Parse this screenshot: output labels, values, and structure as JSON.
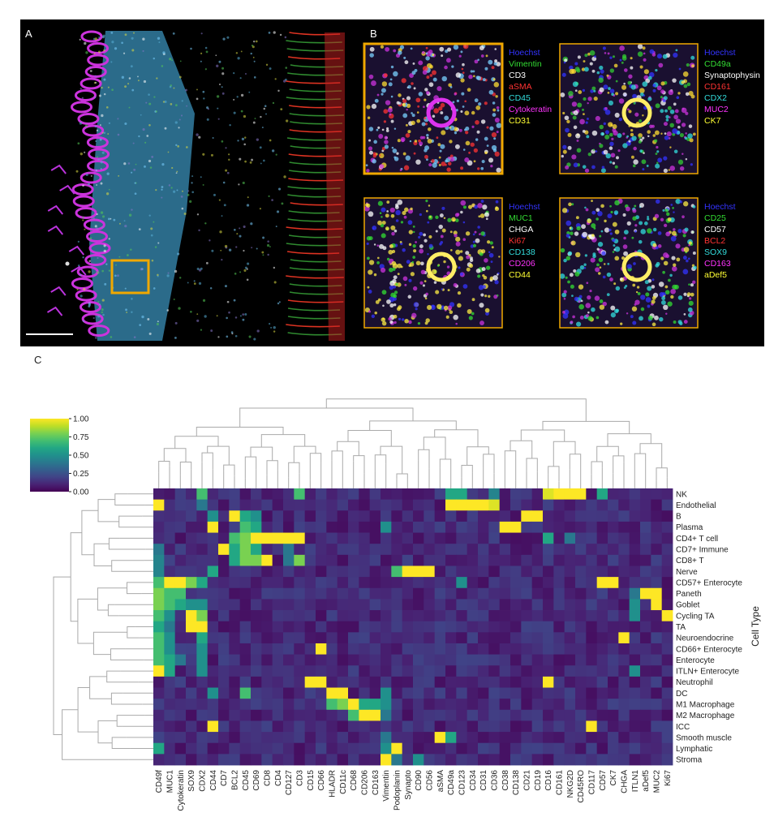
{
  "labels": {
    "a": "A",
    "b": "B",
    "c": "C"
  },
  "insets": [
    {
      "markers": [
        "Hoechst",
        "Vimentin",
        "CD3",
        "aSMA",
        "CD45",
        "Cytokeratin",
        "CD31"
      ],
      "colors": [
        "#3333ff",
        "#33dd33",
        "#ffffff",
        "#ff3333",
        "#33dddd",
        "#ff33ff",
        "#ffff33"
      ]
    },
    {
      "markers": [
        "Hoechst",
        "CD49a",
        "Synaptophysin",
        "CD161",
        "CDX2",
        "MUC2",
        "CK7"
      ],
      "colors": [
        "#3333ff",
        "#33dd33",
        "#ffffff",
        "#ff3333",
        "#33dddd",
        "#ff33ff",
        "#ffff33"
      ]
    },
    {
      "markers": [
        "Hoechst",
        "MUC1",
        "CHGA",
        "Ki67",
        "CD138",
        "CD206",
        "CD44"
      ],
      "colors": [
        "#3333ff",
        "#33dd33",
        "#ffffff",
        "#ff3333",
        "#33dddd",
        "#ff33ff",
        "#ffff33"
      ]
    },
    {
      "markers": [
        "Hoechst",
        "CD25",
        "CD57",
        "BCL2",
        "SOX9",
        "CD163",
        "aDef5"
      ],
      "colors": [
        "#3333ff",
        "#33dd33",
        "#ffffff",
        "#ff3333",
        "#33dddd",
        "#ff33ff",
        "#ffff33"
      ]
    }
  ],
  "chart_data": {
    "type": "heatmap",
    "ylabel": "Cell Type",
    "colorbar": {
      "ticks": [
        "1.00",
        "0.75",
        "0.50",
        "0.25",
        "0.00"
      ],
      "range": [
        0,
        1
      ]
    },
    "columns": [
      "CD49f",
      "MUC1",
      "Cytokeratin",
      "SOX9",
      "CDX2",
      "CD44",
      "CD7",
      "BCL2",
      "CD45",
      "CD69",
      "CD8",
      "CD4",
      "CD127",
      "CD3",
      "CD15",
      "CD66",
      "HLADR",
      "CD11c",
      "CD68",
      "CD206",
      "CD163",
      "Vimentin",
      "Podoplanin",
      "Synapto",
      "CD90",
      "CD56",
      "aSMA",
      "CD49a",
      "CD123",
      "CD34",
      "CD31",
      "CD36",
      "CD38",
      "CD138",
      "CD21",
      "CD19",
      "CD16",
      "CD161",
      "NKG2D",
      "CD45RO",
      "CD117",
      "CD57",
      "CK7",
      "CHGA",
      "ITLN1",
      "aDef5",
      "MUC2",
      "Ki67"
    ],
    "rows": [
      "NK",
      "Endothelial",
      "B",
      "Plasma",
      "CD4+ T cell",
      "CD7+ Immune",
      "CD8+ T",
      "Nerve",
      "CD57+ Enterocyte",
      "Paneth",
      "Goblet",
      "Cycling TA",
      "TA",
      "Neuroendocrine",
      "CD66+ Enterocyte",
      "Enterocyte",
      "ITLN+ Enterocyte",
      "Neutrophil",
      "DC",
      "M1 Macrophage",
      "M2 Macrophage",
      "ICC",
      "Smooth muscle",
      "Lymphatic",
      "Stroma"
    ],
    "high": [
      {
        "row": "NK",
        "cols": {
          "CD161": 1,
          "NKG2D": 1,
          "CD45RO": 1,
          "CD16": 0.95,
          "CD49a": 0.6,
          "CD123": 0.6,
          "CD3": 0.7,
          "CDX2": 0.7,
          "CD57": 0.6,
          "CD36": 0.45
        }
      },
      {
        "row": "Endothelial",
        "cols": {
          "CD49f": 1,
          "CD123": 1,
          "CD34": 1,
          "CD31": 1,
          "CD36": 0.95,
          "CD49a": 1,
          "CDX2": 0.4
        }
      },
      {
        "row": "B",
        "cols": {
          "BCL2": 1,
          "CD21": 1,
          "CD19": 1,
          "CD45": 0.6,
          "CD69": 0.5,
          "CD44": 0.5
        }
      },
      {
        "row": "Plasma",
        "cols": {
          "CD38": 1,
          "CD138": 1,
          "CD44": 1,
          "CD45": 0.7,
          "CD69": 0.6,
          "Vimentin": 0.5
        }
      },
      {
        "row": "CD4+ T cell",
        "cols": {
          "CD69": 1,
          "CD8": 1,
          "CD127": 1,
          "CD4": 1,
          "CD3": 1,
          "CD45": 0.8,
          "BCL2": 0.7,
          "CD16": 0.6,
          "NKG2D": 0.4
        }
      },
      {
        "row": "CD7+ Immune",
        "cols": {
          "CD7": 1,
          "CD45": 0.8,
          "BCL2": 0.6,
          "CD69": 0.6,
          "CD49f": 0.4,
          "CD127": 0.4
        }
      },
      {
        "row": "CD8+ T",
        "cols": {
          "CD8": 1,
          "CD69": 0.8,
          "CD45": 0.8,
          "CD3": 0.8,
          "BCL2": 0.6,
          "CD49f": 0.45,
          "CD127": 0.4
        }
      },
      {
        "row": "Nerve",
        "cols": {
          "Synapto": 1,
          "CD90": 1,
          "CD56": 1,
          "Podoplanin": 0.7,
          "CD44": 0.6,
          "CD49f": 0.45
        }
      },
      {
        "row": "CD57+ Enterocyte",
        "cols": {
          "MUC1": 1,
          "Cytokeratin": 1,
          "SOX9": 0.8,
          "CD57": 1,
          "CK7": 1,
          "CD49f": 0.7,
          "CDX2": 0.6,
          "CD123": 0.5
        }
      },
      {
        "row": "Paneth",
        "cols": {
          "CD49f": 0.8,
          "MUC1": 0.7,
          "Cytokeratin": 0.7,
          "aDef5": 1,
          "MUC2": 1,
          "ITLN1": 0.4
        }
      },
      {
        "row": "Goblet",
        "cols": {
          "CD49f": 0.8,
          "MUC1": 0.7,
          "Cytokeratin": 0.6,
          "SOX9": 0.5,
          "CDX2": 0.5,
          "MUC2": 1,
          "ITLN1": 0.5
        }
      },
      {
        "row": "Cycling TA",
        "cols": {
          "SOX9": 1,
          "CDX2": 0.8,
          "MUC1": 0.5,
          "CD49f": 0.7,
          "Ki67": 1,
          "ITLN1": 0.5
        }
      },
      {
        "row": "TA",
        "cols": {
          "SOX9": 1,
          "CDX2": 1,
          "CD49f": 0.6,
          "MUC1": 0.4
        }
      },
      {
        "row": "Neuroendocrine",
        "cols": {
          "CHGA": 1,
          "CD49f": 0.7,
          "MUC1": 0.5,
          "CDX2": 0.6
        }
      },
      {
        "row": "CD66+ Enterocyte",
        "cols": {
          "CD66": 1,
          "CD49f": 0.7,
          "MUC1": 0.5,
          "CDX2": 0.5
        }
      },
      {
        "row": "Enterocyte",
        "cols": {
          "CD49f": 0.7,
          "MUC1": 0.6,
          "CDX2": 0.5,
          "Cytokeratin": 0.4
        }
      },
      {
        "row": "ITLN+ Enterocyte",
        "cols": {
          "CD49f": 1,
          "MUC1": 0.6,
          "CDX2": 0.5,
          "ITLN1": 0.5
        }
      },
      {
        "row": "Neutrophil",
        "cols": {
          "CD15": 1,
          "CD66": 1,
          "CD16": 1
        }
      },
      {
        "row": "DC",
        "cols": {
          "HLADR": 1,
          "CD11c": 1,
          "CD45": 0.7,
          "CD44": 0.5,
          "Vimentin": 0.5
        }
      },
      {
        "row": "M1 Macrophage",
        "cols": {
          "CD68": 1,
          "CD11c": 0.8,
          "HLADR": 0.7,
          "CD206": 0.6,
          "CD163": 0.6,
          "Vimentin": 0.5
        }
      },
      {
        "row": "M2 Macrophage",
        "cols": {
          "CD206": 1,
          "CD163": 1,
          "CD68": 0.7,
          "Vimentin": 0.4
        }
      },
      {
        "row": "ICC",
        "cols": {
          "CD44": 1,
          "CD117": 1
        }
      },
      {
        "row": "Smooth muscle",
        "cols": {
          "aSMA": 1,
          "CD49a": 0.6,
          "Vimentin": 0.4
        }
      },
      {
        "row": "Lymphatic",
        "cols": {
          "Podoplanin": 1,
          "CD49f": 0.6,
          "Vimentin": 0.5
        }
      },
      {
        "row": "Stroma",
        "cols": {
          "Vimentin": 1,
          "CD90": 0.5,
          "Podoplanin": 0.4
        }
      }
    ]
  }
}
